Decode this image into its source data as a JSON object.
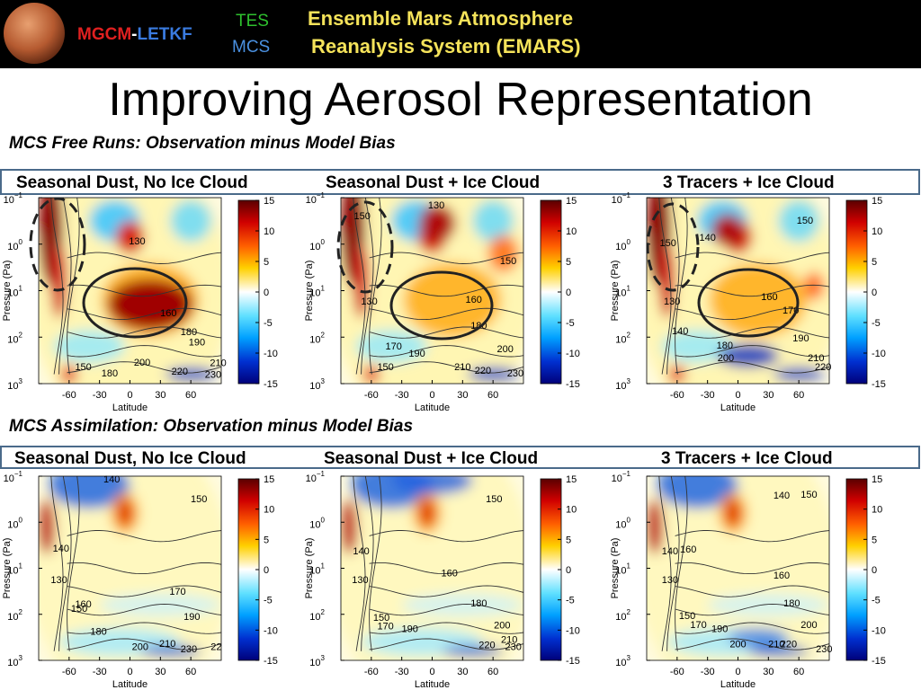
{
  "header": {
    "model_parts": [
      "MGCM",
      "-",
      "LETKF"
    ],
    "instrument_1": "TES",
    "instrument_2": "MCS",
    "system_line_1": "Ensemble Mars Atmosphere",
    "system_line_2": "Reanalysis System (EMARS)"
  },
  "title": "Improving Aerosol Representation",
  "axes": {
    "ylabel": "Pressure (Pa)",
    "xlabel": "Latitude",
    "xticks": [
      -60,
      -30,
      0,
      30,
      60
    ],
    "yticks": [
      {
        "base": "10",
        "exp": "−1"
      },
      {
        "base": "10",
        "exp": "0"
      },
      {
        "base": "10",
        "exp": "1"
      },
      {
        "base": "10",
        "exp": "2"
      },
      {
        "base": "10",
        "exp": "3"
      }
    ],
    "colorbar_ticks": [
      15,
      10,
      5,
      0,
      -5,
      -10,
      -15
    ]
  },
  "sections": [
    {
      "heading": "MCS Free Runs: Observation minus Model Bias",
      "panels": [
        {
          "title": "Seasonal Dust,  No Ice Cloud",
          "contour_labels": [
            "130",
            "160",
            "180",
            "190",
            "200",
            "150",
            "180",
            "220",
            "230",
            "210"
          ]
        },
        {
          "title": "Seasonal Dust + Ice Cloud",
          "contour_labels": [
            "130",
            "150",
            "130",
            "150",
            "160",
            "180",
            "170",
            "190",
            "200",
            "210",
            "220",
            "150",
            "230"
          ]
        },
        {
          "title": "3 Tracers + Ice Cloud",
          "contour_labels": [
            "150",
            "140",
            "150",
            "130",
            "160",
            "170",
            "140",
            "190",
            "180",
            "200",
            "210",
            "220"
          ]
        }
      ]
    },
    {
      "heading": "MCS Assimilation: Observation minus Model Bias",
      "panels": [
        {
          "title": "Seasonal Dust,  No Ice Cloud",
          "contour_labels": [
            "140",
            "150",
            "140",
            "130",
            "160",
            "150",
            "170",
            "190",
            "180",
            "200",
            "210",
            "230",
            "22"
          ]
        },
        {
          "title": "Seasonal Dust + Ice Cloud",
          "contour_labels": [
            "150",
            "140",
            "130",
            "160",
            "180",
            "150",
            "170",
            "190",
            "200",
            "210",
            "220",
            "230"
          ]
        },
        {
          "title": "3 Tracers + Ice Cloud",
          "contour_labels": [
            "140",
            "150",
            "140",
            "160",
            "130",
            "160",
            "180",
            "150",
            "170",
            "190",
            "200",
            "200",
            "210",
            "220",
            "230"
          ]
        }
      ]
    }
  ]
}
